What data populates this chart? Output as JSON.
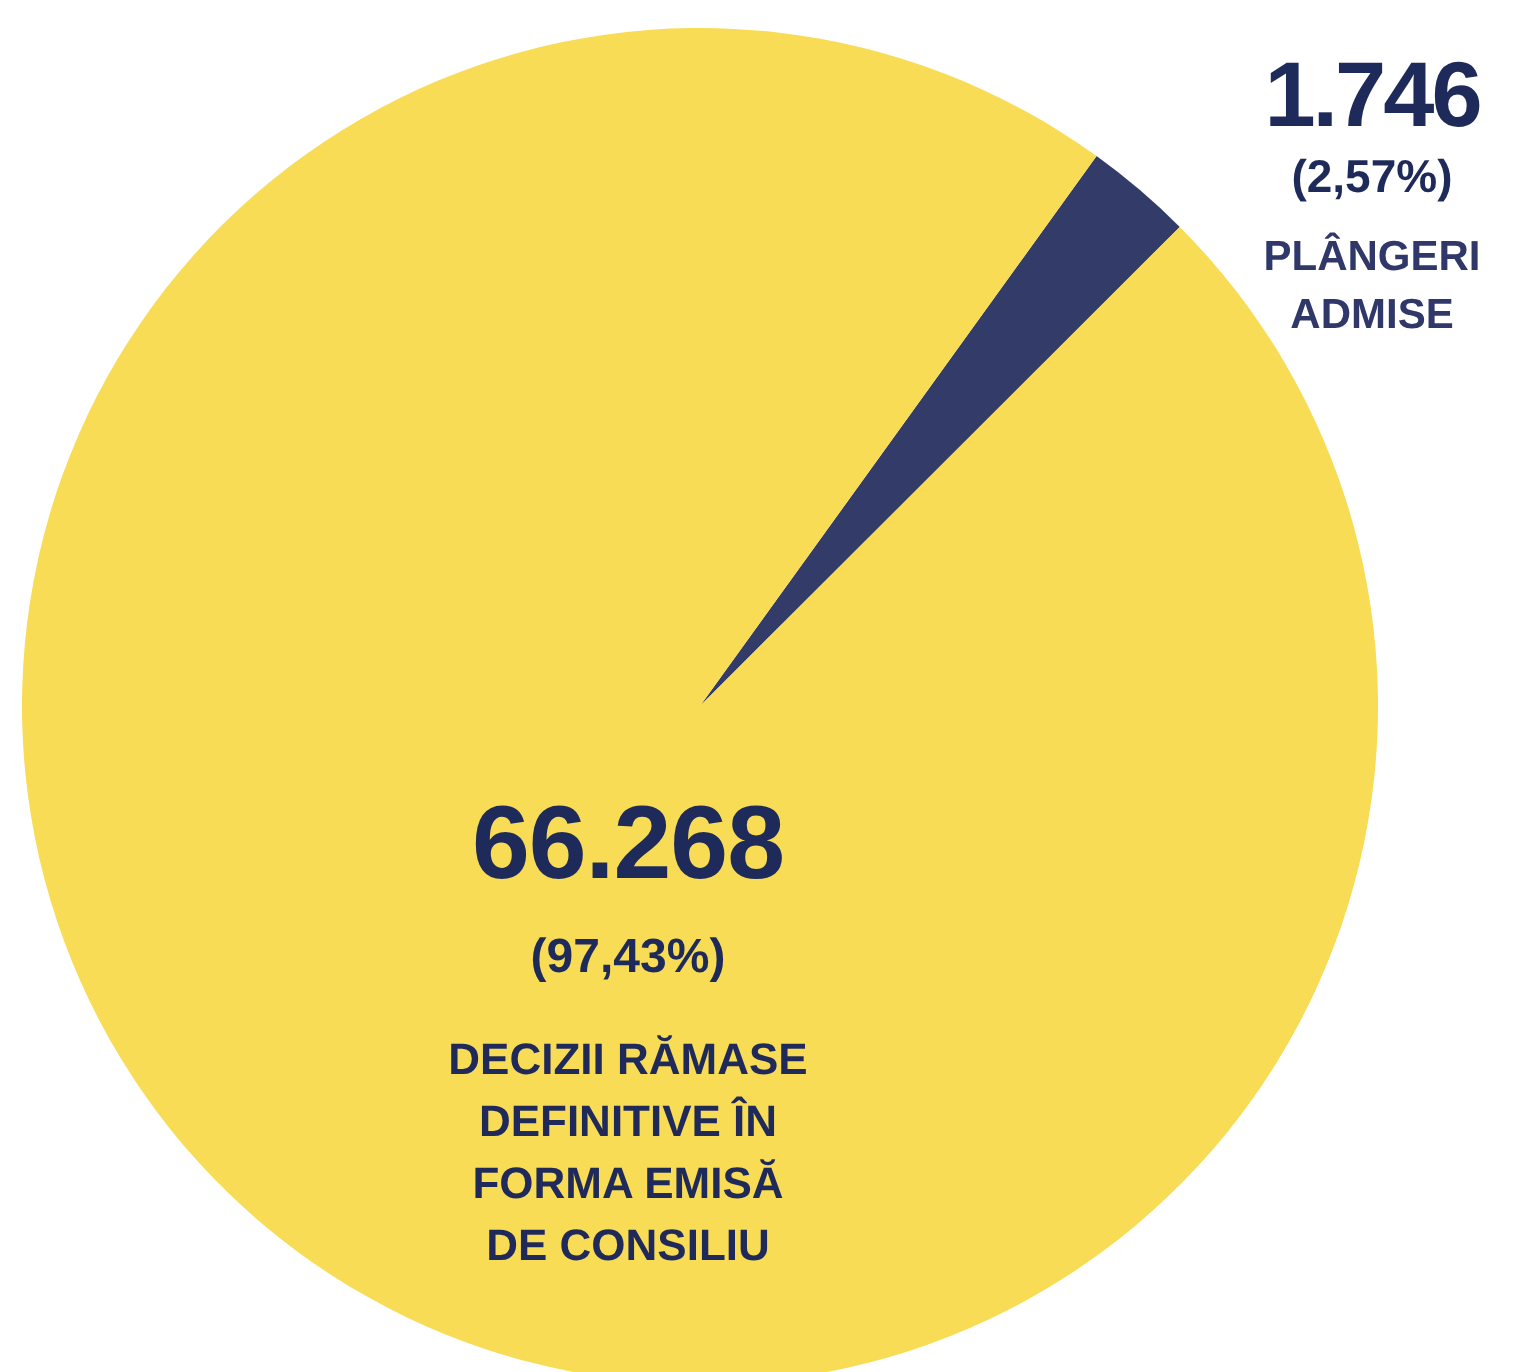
{
  "chart_data": {
    "type": "pie",
    "categories": [
      "PLÂNGERI ADMISE",
      "DECIZII RĂMASE DEFINITIVE ÎN FORMA EMISĂ DE CONSILIU"
    ],
    "values": [
      1746,
      66268
    ],
    "colors": [
      "#333c69",
      "#f8dc55"
    ],
    "value_labels": [
      "1.746 (2,57%)",
      "66.268 (97,43%)"
    ]
  }
}
